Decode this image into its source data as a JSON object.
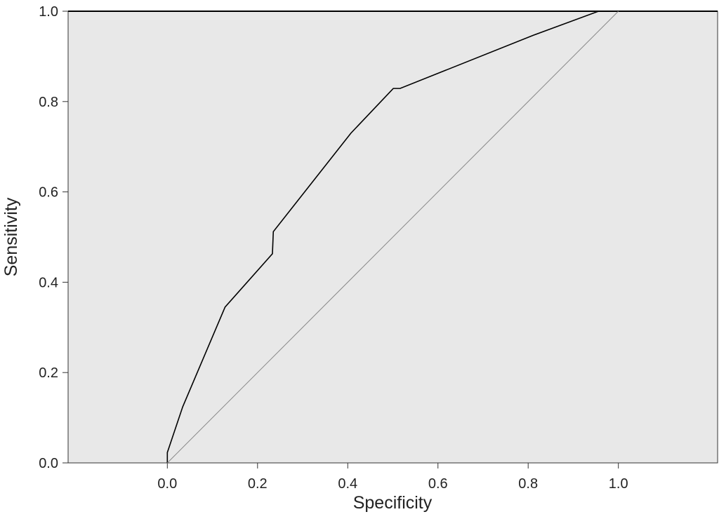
{
  "chart_data": {
    "type": "line",
    "xlabel": "Specificity",
    "ylabel": "Sensitivity",
    "xlim": [
      -0.22,
      1.22
    ],
    "ylim": [
      0,
      1
    ],
    "xticks": [
      {
        "value": 0,
        "label": "0.0"
      },
      0.2,
      0.4,
      0.6,
      0.8,
      {
        "value": 1,
        "label": "1.0"
      }
    ],
    "yticks": [
      {
        "value": 0,
        "label": "0.0"
      },
      0.2,
      0.4,
      0.6,
      0.8,
      {
        "value": 1,
        "label": "1.0"
      }
    ],
    "background": "#e8e8e8",
    "series": [
      {
        "color": "#000000",
        "x": [
          0,
          0,
          0.034,
          0.128,
          0.233,
          0.235,
          0.407,
          0.501,
          0.516,
          0.812,
          0.956,
          1.0
        ],
        "values": [
          0,
          0.023,
          0.124,
          0.345,
          0.463,
          0.512,
          0.73,
          0.829,
          0.829,
          0.947,
          1.0,
          1.0
        ]
      },
      {
        "color": "#888888",
        "x": [
          0,
          1
        ],
        "values": [
          0,
          1
        ]
      }
    ]
  }
}
